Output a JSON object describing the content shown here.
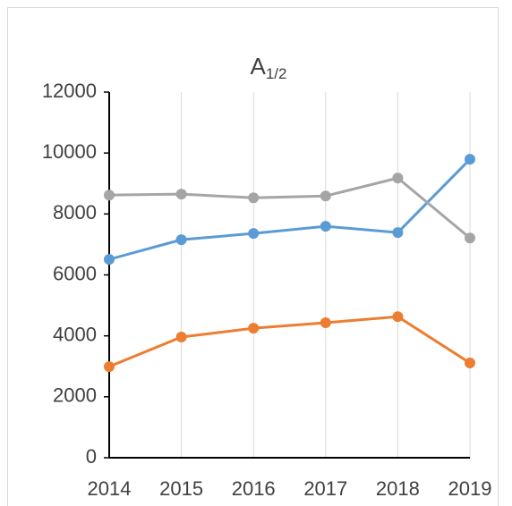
{
  "chart_data": {
    "type": "line",
    "title": {
      "text": "A",
      "subscript": "1/2"
    },
    "categories": [
      "2014",
      "2015",
      "2016",
      "2017",
      "2018",
      "2019"
    ],
    "series": [
      {
        "color": "#5b9bd5",
        "values": [
          6510,
          7155,
          7360,
          7595,
          7390,
          9795
        ]
      },
      {
        "color": "#ed7d31",
        "values": [
          2990,
          3960,
          4250,
          4430,
          4630,
          3110
        ]
      },
      {
        "color": "#a5a5a5",
        "values": [
          8620,
          8650,
          8530,
          8590,
          9180,
          7210
        ]
      }
    ],
    "ylim": [
      0,
      12000
    ],
    "yticks": [
      0,
      2000,
      4000,
      6000,
      8000,
      10000,
      12000
    ],
    "grid": true
  }
}
